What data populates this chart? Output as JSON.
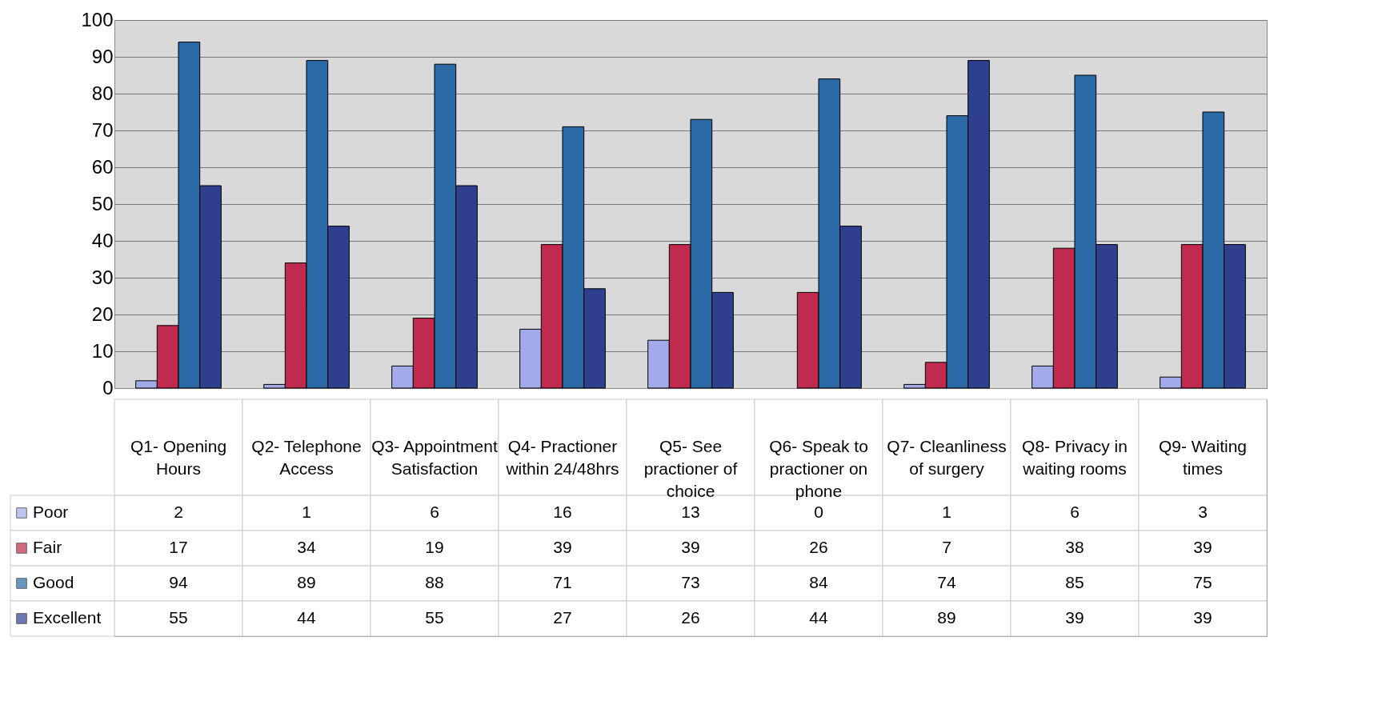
{
  "chart_data": {
    "type": "bar",
    "categories": [
      "Q1- Opening Hours",
      "Q2- Telephone Access",
      "Q3- Appointment Satisfaction",
      "Q4- Practioner within 24/48hrs",
      "Q5- See practioner of choice",
      "Q6- Speak to practioner on phone",
      "Q7- Cleanliness of surgery",
      "Q8- Privacy in waiting rooms",
      "Q9- Waiting times"
    ],
    "series": [
      {
        "name": "Poor",
        "color": "#a3aaea",
        "values": [
          2,
          1,
          6,
          16,
          13,
          0,
          1,
          6,
          3
        ]
      },
      {
        "name": "Fair",
        "color": "#c02a4e",
        "values": [
          17,
          34,
          19,
          39,
          39,
          26,
          7,
          38,
          39
        ]
      },
      {
        "name": "Good",
        "color": "#2b6aa6",
        "values": [
          94,
          89,
          88,
          71,
          73,
          84,
          74,
          85,
          75
        ]
      },
      {
        "name": "Excellent",
        "color": "#2f3f8e",
        "values": [
          55,
          44,
          55,
          27,
          26,
          44,
          89,
          39,
          39
        ]
      }
    ],
    "ylim": [
      0,
      100
    ],
    "yticks": [
      0,
      10,
      20,
      30,
      40,
      50,
      60,
      70,
      80,
      90,
      100
    ],
    "grid": "y",
    "data_labels": true,
    "legend": "bottom left"
  }
}
